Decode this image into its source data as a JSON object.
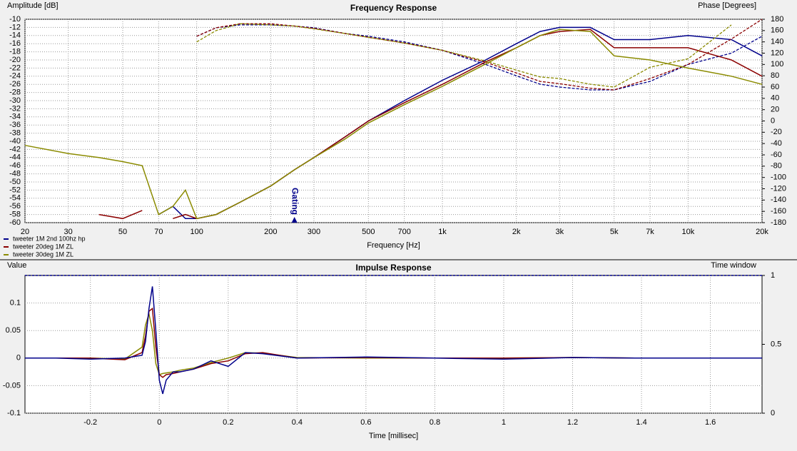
{
  "chart_data": [
    {
      "type": "line",
      "title": "Frequency Response",
      "y_label": "Amplitude [dB]",
      "y2_label": "Phase [Degrees]",
      "x_label": "Frequency [Hz]",
      "log_x": true,
      "grid": true,
      "xlim": [
        20,
        20000
      ],
      "xticks": [
        20,
        30,
        50,
        70,
        100,
        200,
        300,
        500,
        700,
        {
          "value": 1000,
          "label": "1k"
        },
        {
          "value": 2000,
          "label": "2k"
        },
        {
          "value": 3000,
          "label": "3k"
        },
        {
          "value": 5000,
          "label": "5k"
        },
        {
          "value": 7000,
          "label": "7k"
        },
        {
          "value": 10000,
          "label": "10k"
        },
        {
          "value": 20000,
          "label": "20k"
        }
      ],
      "ylim": [
        -60,
        -10
      ],
      "yticks": [
        -60,
        -58,
        -56,
        -54,
        -52,
        -50,
        -48,
        -46,
        -44,
        -42,
        -40,
        -38,
        -36,
        -34,
        -32,
        -30,
        -28,
        -26,
        -24,
        -22,
        -20,
        -18,
        -16,
        -14,
        -12,
        -10
      ],
      "y2lim": [
        -180,
        180
      ],
      "y2ticks": [
        -180,
        -160,
        -140,
        -120,
        -100,
        -80,
        -60,
        -40,
        -20,
        0,
        20,
        40,
        60,
        80,
        100,
        120,
        140,
        160,
        180
      ],
      "annotations": [
        {
          "text": "Gating",
          "x": 250
        }
      ],
      "x": [
        20,
        30,
        40,
        50,
        60,
        70,
        80,
        90,
        100,
        120,
        150,
        200,
        250,
        300,
        400,
        500,
        700,
        1000,
        1500,
        2000,
        2500,
        3000,
        4000,
        5000,
        7000,
        10000,
        15000,
        20000
      ],
      "series": [
        {
          "name": "tweeter 1M 2nd 100hz hp",
          "color": "#00008b",
          "values": [
            null,
            null,
            null,
            null,
            null,
            -58,
            -56,
            -59,
            -59,
            -58,
            -55,
            -51,
            -47,
            -44,
            -39,
            -35,
            -30,
            -25,
            -20,
            -16,
            -13,
            -12,
            -12,
            -15,
            -15,
            -14,
            -15,
            -19
          ],
          "phase": [
            null,
            null,
            null,
            null,
            null,
            null,
            null,
            null,
            150,
            165,
            170,
            170,
            168,
            165,
            155,
            150,
            140,
            125,
            100,
            80,
            65,
            60,
            55,
            55,
            70,
            100,
            120,
            150
          ]
        },
        {
          "name": "tweeter 20deg 1M ZL",
          "color": "#8b0000",
          "values": [
            null,
            null,
            -58,
            -59,
            -57,
            null,
            -59,
            -58,
            -59,
            -58,
            -55,
            -51,
            -47,
            -44,
            -39,
            -35,
            -30.5,
            -26,
            -20.5,
            -17,
            -14,
            -13,
            -12.5,
            -17,
            -17,
            -17,
            -20,
            -24
          ],
          "phase": [
            null,
            null,
            null,
            null,
            null,
            null,
            null,
            null,
            150,
            165,
            172,
            172,
            168,
            164,
            155,
            148,
            138,
            125,
            104,
            85,
            70,
            66,
            58,
            55,
            75,
            100,
            145,
            180
          ]
        },
        {
          "name": "tweeter 30deg 1M ZL",
          "color": "#8b8b00",
          "values": [
            -41,
            -43,
            -44,
            -45,
            -46,
            -58,
            -56,
            -52,
            -59,
            -58,
            -55,
            -51,
            -47,
            -44,
            -39.5,
            -35.5,
            -31,
            -26.5,
            -21,
            -17,
            -14,
            -12.5,
            -13,
            -19,
            -20,
            -22,
            -24,
            -26
          ],
          "phase": [
            null,
            null,
            null,
            null,
            null,
            null,
            null,
            null,
            140,
            160,
            172,
            170,
            168,
            163,
            155,
            148,
            138,
            125,
            106,
            90,
            78,
            75,
            65,
            60,
            95,
            110,
            170,
            null
          ]
        }
      ]
    },
    {
      "type": "line",
      "title": "Impulse Response",
      "y_label": "Value",
      "y2_label": "Time window",
      "x_label": "Time [millisec]",
      "grid": true,
      "xlim": [
        -0.39,
        1.75
      ],
      "xticks": [
        -0.2,
        0,
        0.2,
        0.4,
        0.6,
        0.8,
        1,
        1.2,
        1.4,
        1.6
      ],
      "ylim": [
        -0.1,
        0.15
      ],
      "yticks": [
        -0.1,
        -0.05,
        0,
        0.05,
        0.1
      ],
      "y2lim": [
        0,
        1
      ],
      "y2ticks": [
        0,
        0.5,
        1
      ],
      "time_window": {
        "color": "#00008b",
        "x": [
          -0.39,
          1.75
        ],
        "values": [
          1,
          1
        ]
      },
      "x": [
        -0.39,
        -0.3,
        -0.2,
        -0.1,
        -0.05,
        -0.04,
        -0.03,
        -0.02,
        -0.01,
        0,
        0.01,
        0.02,
        0.04,
        0.06,
        0.1,
        0.15,
        0.2,
        0.25,
        0.3,
        0.4,
        0.6,
        0.8,
        1.0,
        1.2,
        1.4,
        1.6,
        1.75
      ],
      "series": [
        {
          "color": "#8b8b00",
          "values": [
            0,
            0,
            0,
            -0.002,
            0.02,
            0.06,
            0.08,
            0.05,
            -0.01,
            -0.03,
            -0.028,
            -0.027,
            -0.025,
            -0.022,
            -0.018,
            -0.008,
            0,
            0.01,
            0.009,
            0.001,
            0,
            0,
            0,
            0.001,
            0,
            0,
            0
          ]
        },
        {
          "color": "#8b0000",
          "values": [
            0,
            0,
            0,
            -0.003,
            0.01,
            0.04,
            0.085,
            0.09,
            0.02,
            -0.03,
            -0.035,
            -0.03,
            -0.028,
            -0.025,
            -0.02,
            -0.01,
            -0.005,
            0.008,
            0.01,
            0,
            0.001,
            0,
            0,
            0.001,
            0,
            0,
            0
          ]
        },
        {
          "color": "#00008b",
          "values": [
            0,
            0,
            -0.002,
            0,
            0.005,
            0.03,
            0.09,
            0.13,
            0.05,
            -0.04,
            -0.065,
            -0.04,
            -0.025,
            -0.025,
            -0.02,
            -0.005,
            -0.015,
            0.01,
            0.008,
            0,
            0.002,
            0,
            -0.002,
            0.001,
            0,
            0,
            0
          ]
        }
      ]
    }
  ]
}
